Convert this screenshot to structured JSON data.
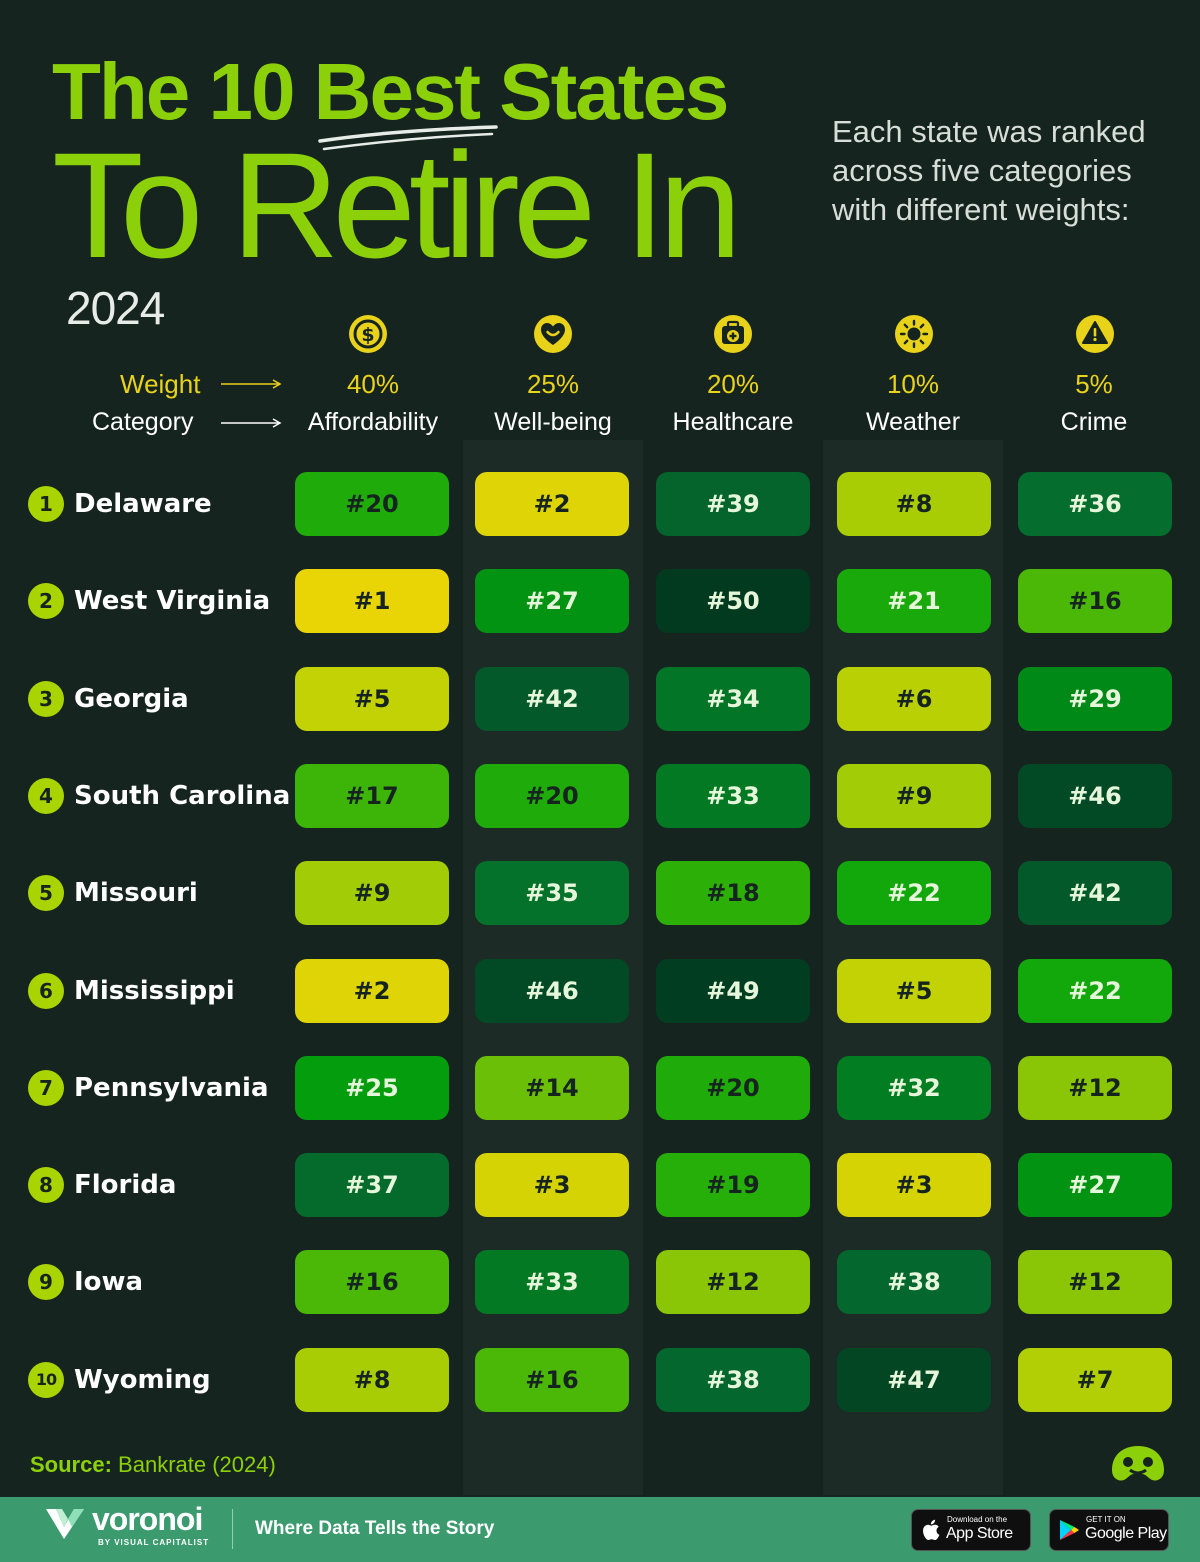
{
  "title": {
    "line1_pre": "The 10 ",
    "line1_accent": "Best",
    "line1_post": " States",
    "line2": "To Retire In"
  },
  "year": "2024",
  "subtitle": "Each state was ranked across five categories with different weights:",
  "legend": {
    "weight_label": "Weight",
    "category_label": "Category"
  },
  "colors": {
    "background": "#16241f",
    "title": "#8cd00a",
    "weight": "#e9d21a",
    "scale_best": "#e9d506",
    "scale_worst": "#013a1f",
    "footer": "#3b9a6e"
  },
  "chart_data": {
    "type": "table",
    "categories": [
      {
        "name": "Affordability",
        "weight": "40%",
        "icon": "dollar-coin-icon"
      },
      {
        "name": "Well-being",
        "weight": "25%",
        "icon": "heart-smile-icon"
      },
      {
        "name": "Healthcare",
        "weight": "20%",
        "icon": "medical-kit-icon"
      },
      {
        "name": "Weather",
        "weight": "10%",
        "icon": "sun-icon"
      },
      {
        "name": "Crime",
        "weight": "5%",
        "icon": "warning-icon"
      }
    ],
    "rows": [
      {
        "rank": "1",
        "state": "Delaware",
        "values": [
          20,
          2,
          39,
          8,
          36
        ]
      },
      {
        "rank": "2",
        "state": "West Virginia",
        "values": [
          1,
          27,
          50,
          21,
          16
        ]
      },
      {
        "rank": "3",
        "state": "Georgia",
        "values": [
          5,
          42,
          34,
          6,
          29
        ]
      },
      {
        "rank": "4",
        "state": "South Carolina",
        "values": [
          17,
          20,
          33,
          9,
          46
        ]
      },
      {
        "rank": "5",
        "state": "Missouri",
        "values": [
          9,
          35,
          18,
          22,
          42
        ]
      },
      {
        "rank": "6",
        "state": "Mississippi",
        "values": [
          2,
          46,
          49,
          5,
          22
        ]
      },
      {
        "rank": "7",
        "state": "Pennsylvania",
        "values": [
          25,
          14,
          20,
          32,
          12
        ]
      },
      {
        "rank": "8",
        "state": "Florida",
        "values": [
          37,
          3,
          19,
          3,
          27
        ]
      },
      {
        "rank": "9",
        "state": "Iowa",
        "values": [
          16,
          33,
          12,
          38,
          12
        ]
      },
      {
        "rank": "10",
        "state": "Wyoming",
        "values": [
          8,
          16,
          38,
          47,
          7
        ]
      }
    ],
    "value_prefix": "#"
  },
  "source": {
    "label": "Source:",
    "text": "Bankrate (2024)"
  },
  "footer": {
    "brand": "voronoi",
    "brand_sub": "BY VISUAL CAPITALIST",
    "tagline": "Where Data Tells the Story",
    "app_store": {
      "top": "Download on the",
      "main": "App Store"
    },
    "google_play": {
      "top": "GET IT ON",
      "main": "Google Play"
    }
  }
}
